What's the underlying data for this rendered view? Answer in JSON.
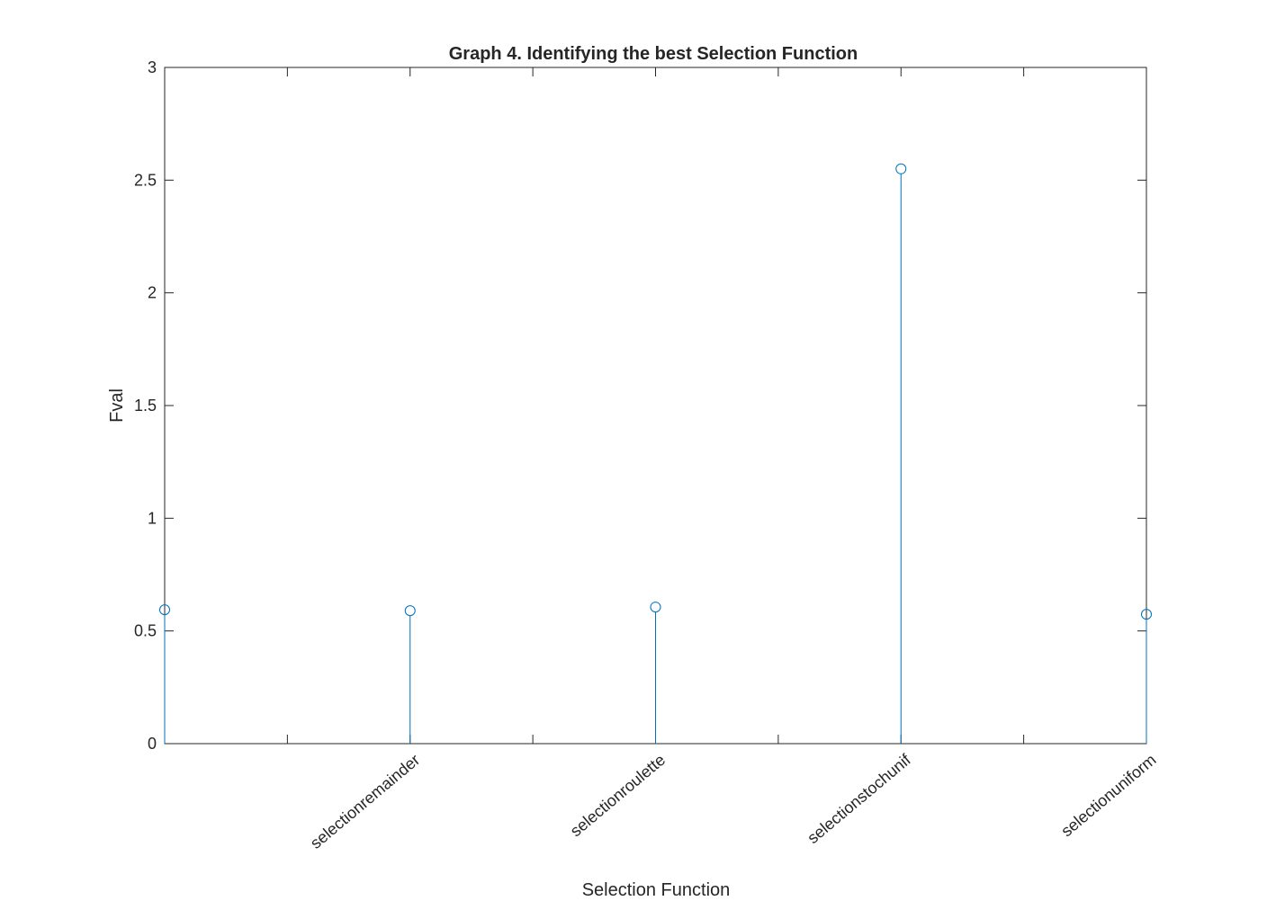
{
  "chart_data": {
    "type": "stem",
    "title": "Graph 4. Identifying the best Selection Function",
    "xlabel": "Selection Function",
    "ylabel": "Fval",
    "x": [
      1,
      2,
      3,
      4,
      5
    ],
    "x_tick_labels": [
      "",
      "selectionremainder",
      "selectionroulette",
      "selectionstochunif",
      "selectionuniform"
    ],
    "y_ticks": [
      0,
      0.5,
      1,
      1.5,
      2,
      2.5,
      3
    ],
    "y_tick_labels": [
      "0",
      "0.5",
      "1",
      "1.5",
      "2",
      "2.5",
      "3"
    ],
    "values": [
      0.594,
      0.59,
      0.606,
      2.55,
      0.574
    ],
    "xlim": [
      1,
      5
    ],
    "ylim": [
      0,
      3
    ],
    "grid": false,
    "marker": "open-circle",
    "color": "#0072BD"
  }
}
